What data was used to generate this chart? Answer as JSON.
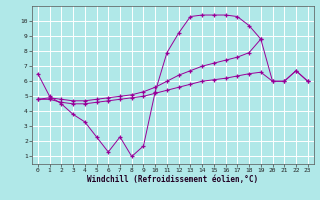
{
  "xlabel": "Windchill (Refroidissement éolien,°C)",
  "bg_color": "#b0e8e8",
  "grid_color": "#ffffff",
  "line_color": "#990099",
  "xlim": [
    -0.5,
    23.5
  ],
  "ylim": [
    0.5,
    11.0
  ],
  "xticks": [
    0,
    1,
    2,
    3,
    4,
    5,
    6,
    7,
    8,
    9,
    10,
    11,
    12,
    13,
    14,
    15,
    16,
    17,
    18,
    19,
    20,
    21,
    22,
    23
  ],
  "yticks": [
    1,
    2,
    3,
    4,
    5,
    6,
    7,
    8,
    9,
    10
  ],
  "curve_a_x": [
    0,
    1,
    2,
    3,
    4,
    5,
    6,
    7,
    8,
    9,
    10,
    11,
    12,
    13,
    14,
    15,
    16,
    17,
    18,
    19
  ],
  "curve_a_y": [
    6.5,
    5.0,
    4.5,
    3.8,
    3.3,
    2.3,
    1.3,
    2.3,
    1.0,
    1.7,
    5.3,
    7.9,
    9.2,
    10.3,
    10.4,
    10.4,
    10.4,
    10.3,
    9.7,
    8.8
  ],
  "curve_b_x": [
    0,
    1,
    2,
    3,
    4,
    5,
    6,
    7,
    8,
    9,
    10,
    11,
    12,
    13,
    14,
    15,
    16,
    17,
    18,
    19,
    20,
    21,
    22,
    23
  ],
  "curve_b_y": [
    4.8,
    4.8,
    4.6,
    4.5,
    4.5,
    4.6,
    4.7,
    4.8,
    4.9,
    5.0,
    5.2,
    5.4,
    5.6,
    5.8,
    6.0,
    6.1,
    6.2,
    6.35,
    6.5,
    6.6,
    6.0,
    6.0,
    6.7,
    6.0
  ],
  "curve_c_x": [
    0,
    1,
    2,
    3,
    4,
    5,
    6,
    7,
    8,
    9,
    10,
    11,
    12,
    13,
    14,
    15,
    16,
    17,
    18,
    19,
    20,
    21,
    22,
    23
  ],
  "curve_c_y": [
    4.8,
    4.9,
    4.8,
    4.7,
    4.7,
    4.8,
    4.9,
    5.0,
    5.1,
    5.3,
    5.6,
    6.0,
    6.4,
    6.7,
    7.0,
    7.2,
    7.4,
    7.6,
    7.9,
    8.8,
    6.0,
    6.0,
    6.7,
    6.0
  ]
}
